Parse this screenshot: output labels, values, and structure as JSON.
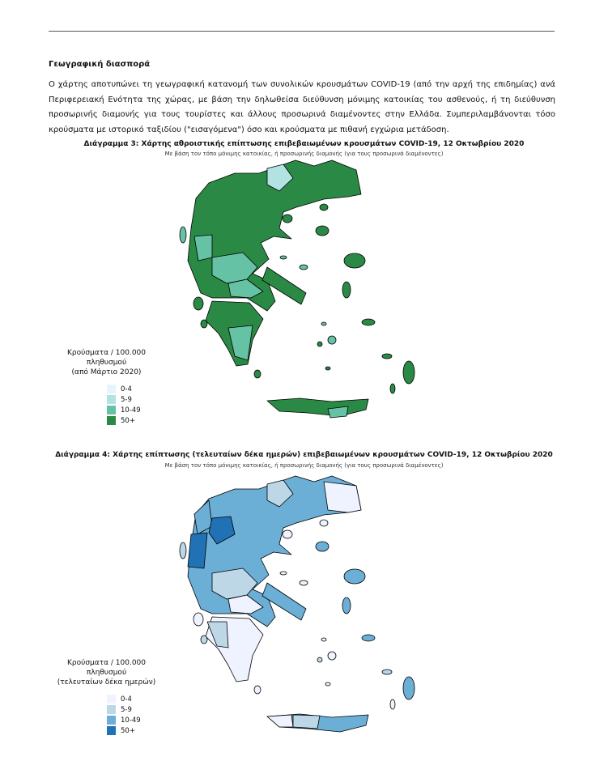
{
  "section_heading": "Γεωγραφική διασπορά",
  "paragraph": "Ο χάρτης αποτυπώνει τη γεωγραφική κατανομή των συνολικών κρουσμάτων COVID-19 (από την αρχή της επιδημίας) ανά Περιφερειακή Ενότητα της χώρας, με βάση την δηλωθείσα διεύθυνση μόνιμης κατοικίας του ασθενούς, ή τη διεύθυνση προσωρινής διαμονής για τους τουρίστες και άλλους προσωρινά διαμένοντες στην Ελλάδα.  Συμπεριλαμβάνονται τόσο κρούσματα με ιστορικό ταξιδίου (\"εισαγόμενα\") όσο και κρούσματα με πιθανή εγχώρια μετάδοση.",
  "maps": [
    {
      "title": "Διάγραμμα 3: Χάρτης αθροιστικής επίπτωσης επιβεβαιωμένων κρουσμάτων COVID-19, 12 Οκτωβρίου 2020",
      "subtitle": "Με βάση τον τόπο μόνιμης κατοικίας, ή προσωρινής διαμονής (για τους προσωρινά διαμένοντες)",
      "legend": {
        "title": "Κρούσματα / 100.000 πληθυσμού",
        "subtitle": "(από Μάρτιο 2020)",
        "items": [
          {
            "label": "0-4",
            "color": "#e5f5f9"
          },
          {
            "label": "5-9",
            "color": "#b2e2e2"
          },
          {
            "label": "10-49",
            "color": "#66c2a4"
          },
          {
            "label": "50+",
            "color": "#2a8a45"
          }
        ]
      }
    },
    {
      "title": "Διάγραμμα 4: Χάρτης επίπτωσης (τελευταίων δέκα ημερών) επιβεβαιωμένων κρουσμάτων COVID-19, 12 Οκτωβρίου 2020",
      "subtitle": "Με βάση τον τόπο μόνιμης κατοικίας, ή προσωρινής διαμονής (για τους προσωρινά διαμένοντες)",
      "legend": {
        "title": "Κρούσματα / 100.000 πληθυσμού",
        "subtitle": "(τελευταίων δέκα ημερών)",
        "items": [
          {
            "label": "0-4",
            "color": "#eff3ff"
          },
          {
            "label": "5-9",
            "color": "#bdd7e7"
          },
          {
            "label": "10-49",
            "color": "#6baed6"
          },
          {
            "label": "50+",
            "color": "#2171b5"
          }
        ]
      }
    }
  ]
}
